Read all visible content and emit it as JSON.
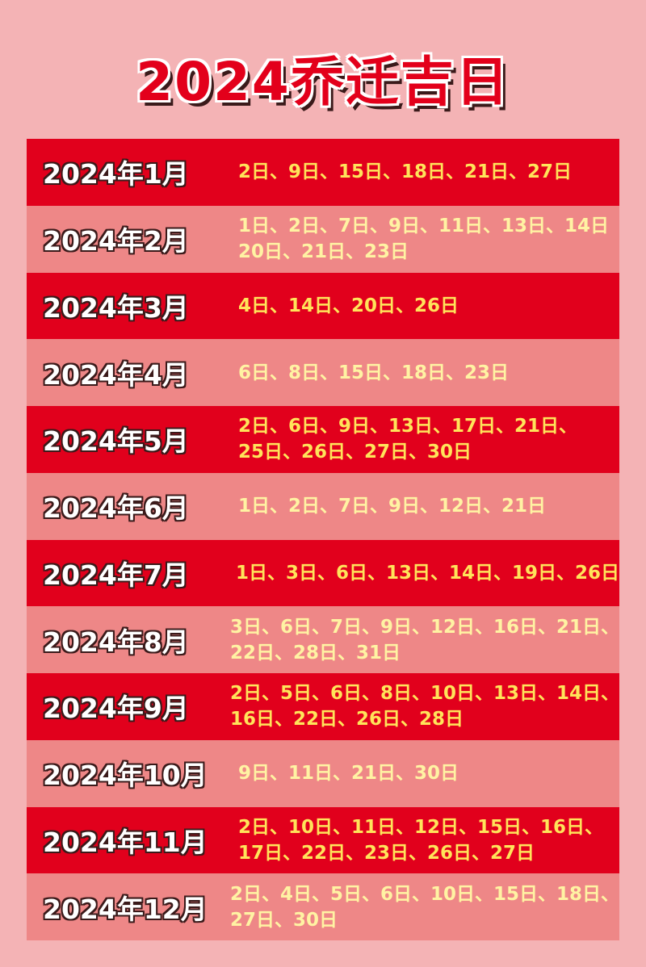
{
  "title": "2024乔迁吉日",
  "table": {
    "rows": [
      {
        "month": "2024年1月",
        "lines": [
          "2日、9日、15日、18日、21日、27日"
        ]
      },
      {
        "month": "2024年2月",
        "lines": [
          "1日、2日、7日、9日、11日、13日、14日",
          "20日、21日、23日"
        ]
      },
      {
        "month": "2024年3月",
        "lines": [
          "4日、14日、20日、26日"
        ]
      },
      {
        "month": "2024年4月",
        "lines": [
          "6日、8日、15日、18日、23日"
        ]
      },
      {
        "month": "2024年5月",
        "lines": [
          "2日、6日、9日、13日、17日、21日、",
          "25日、26日、27日、30日"
        ]
      },
      {
        "month": "2024年6月",
        "lines": [
          "1日、2日、7日、9日、12日、21日"
        ]
      },
      {
        "month": "2024年7月",
        "lines": [
          "1日、3日、6日、13日、14日、19日、26日"
        ]
      },
      {
        "month": "2024年8月",
        "lines": [
          "3日、6日、7日、9日、12日、16日、21日、",
          "22日、28日、31日"
        ]
      },
      {
        "month": "2024年9月",
        "lines": [
          "2日、5日、6日、8日、10日、13日、14日、",
          "16日、22日、26日、28日"
        ]
      },
      {
        "month": "2024年10月",
        "lines": [
          "9日、11日、21日、30日"
        ]
      },
      {
        "month": "2024年11月",
        "lines": [
          "2日、10日、11日、12日、15日、16日、",
          "17日、22日、23日、26日、27日"
        ]
      },
      {
        "month": "2024年12月",
        "lines": [
          "2日、4日、5日、6日、10日、15日、18日、",
          "27日、30日"
        ]
      }
    ]
  }
}
